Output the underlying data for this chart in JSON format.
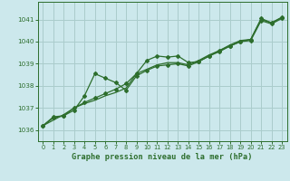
{
  "title": "Graphe pression niveau de la mer (hPa)",
  "background_color": "#cce8ec",
  "grid_color": "#aacccc",
  "line_color": "#2d6e2d",
  "xlim": [
    -0.5,
    23.5
  ],
  "ylim": [
    1035.5,
    1041.8
  ],
  "xticks": [
    0,
    1,
    2,
    3,
    4,
    5,
    6,
    7,
    8,
    9,
    10,
    11,
    12,
    13,
    14,
    15,
    16,
    17,
    18,
    19,
    20,
    21,
    22,
    23
  ],
  "yticks": [
    1036,
    1037,
    1038,
    1039,
    1040,
    1041
  ],
  "series1_x": [
    0,
    1,
    2,
    3,
    4,
    5,
    6,
    7,
    8,
    9,
    10,
    11,
    12,
    13,
    14,
    15,
    16,
    17,
    18,
    19,
    20,
    21,
    22,
    23
  ],
  "series1_y": [
    1036.2,
    1036.55,
    1036.65,
    1037.0,
    1037.25,
    1037.45,
    1037.65,
    1037.85,
    1038.1,
    1038.55,
    1039.15,
    1039.35,
    1039.3,
    1039.35,
    1039.05,
    1039.1,
    1039.35,
    1039.6,
    1039.8,
    1040.0,
    1040.1,
    1041.05,
    1040.85,
    1041.1
  ],
  "series2_x": [
    0,
    2,
    3,
    4,
    5,
    6,
    7,
    8,
    9,
    10,
    11,
    12,
    13,
    14,
    15,
    16,
    17,
    18,
    19,
    20,
    21,
    22,
    23
  ],
  "series2_y": [
    1036.2,
    1036.7,
    1037.0,
    1037.2,
    1037.35,
    1037.55,
    1037.7,
    1037.9,
    1038.55,
    1038.75,
    1038.95,
    1039.05,
    1039.05,
    1038.95,
    1039.15,
    1039.4,
    1039.6,
    1039.85,
    1040.05,
    1040.1,
    1041.0,
    1040.85,
    1041.1
  ],
  "series3_x": [
    0,
    1,
    2,
    3,
    4,
    5,
    6,
    7,
    8,
    9,
    10,
    11,
    12,
    13,
    14,
    15,
    16,
    17,
    18,
    19,
    20,
    21,
    22,
    23
  ],
  "series3_y": [
    1036.2,
    1036.6,
    1036.65,
    1036.9,
    1037.55,
    1038.55,
    1038.35,
    1038.15,
    1037.8,
    1038.45,
    1038.7,
    1038.9,
    1038.95,
    1039.0,
    1038.9,
    1039.1,
    1039.35,
    1039.55,
    1039.8,
    1040.0,
    1040.05,
    1040.95,
    1040.8,
    1041.05
  ],
  "marker_series_x": [
    1,
    2,
    3,
    4,
    5,
    6,
    7,
    8,
    9,
    10,
    11,
    12,
    13,
    14,
    17,
    18,
    19,
    20,
    21,
    22,
    23
  ],
  "marker_series_y": [
    1036.55,
    1036.65,
    1037.0,
    1037.25,
    1037.45,
    1037.65,
    1037.85,
    1038.1,
    1038.55,
    1039.15,
    1039.35,
    1039.3,
    1039.35,
    1039.05,
    1039.6,
    1039.8,
    1040.0,
    1040.1,
    1041.05,
    1040.85,
    1041.1
  ]
}
